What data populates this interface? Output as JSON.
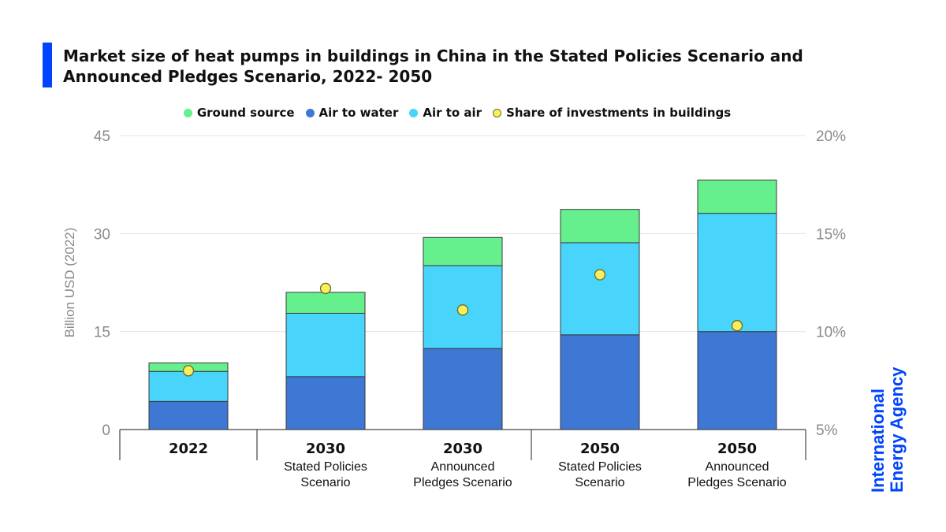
{
  "header": {
    "title": "Market size of heat pumps in buildings in China in the Stated Policies Scenario and Announced Pledges Scenario, 2022- 2050",
    "accent_color": "#0044ff"
  },
  "logo": {
    "text_line1": "International",
    "text_line2": "Energy Agency",
    "color": "#0044ff"
  },
  "chart_data": {
    "type": "bar",
    "stacked": true,
    "title": "Market size of heat pumps in buildings in China in the Stated Policies Scenario and Announced Pledges Scenario, 2022- 2050",
    "ylabel": "Billion USD (2022)",
    "ylim": [
      0,
      45
    ],
    "yticks": [
      "0",
      "15",
      "30",
      "45"
    ],
    "y2lim": [
      0.05,
      0.2
    ],
    "y2ticks": [
      "5%",
      "10%",
      "15%",
      "20%"
    ],
    "grid": true,
    "legend_position": "top-center",
    "categories": [
      {
        "year": "2022",
        "scenario": [
          "",
          ""
        ]
      },
      {
        "year": "2030",
        "scenario": [
          "Stated Policies",
          "Scenario"
        ]
      },
      {
        "year": "2030",
        "scenario": [
          "Announced",
          "Pledges Scenario"
        ]
      },
      {
        "year": "2050",
        "scenario": [
          "Stated Policies",
          "Scenario"
        ]
      },
      {
        "year": "2050",
        "scenario": [
          "Announced",
          "Pledges Scenario"
        ]
      }
    ],
    "series": [
      {
        "name": "Air to water",
        "color": "#3e78d4",
        "values": [
          4.3,
          8.1,
          12.4,
          14.5,
          15.0
        ]
      },
      {
        "name": "Air to air",
        "color": "#48d4fb",
        "values": [
          4.6,
          9.7,
          12.7,
          14.1,
          18.1
        ]
      },
      {
        "name": "Ground source",
        "color": "#66f08d",
        "values": [
          1.3,
          3.2,
          4.3,
          5.1,
          5.1
        ]
      }
    ],
    "line_series": {
      "name": "Share of investments in buildings",
      "color": "#f7f05a",
      "values": [
        0.08,
        0.122,
        0.111,
        0.129,
        0.103
      ]
    },
    "legend": [
      {
        "name": "Ground source",
        "color": "#66f08d"
      },
      {
        "name": "Air to water",
        "color": "#3e78d4"
      },
      {
        "name": "Air to air",
        "color": "#48d4fb"
      },
      {
        "name": "Share of investments in buildings",
        "color": "#f7f05a"
      }
    ]
  }
}
